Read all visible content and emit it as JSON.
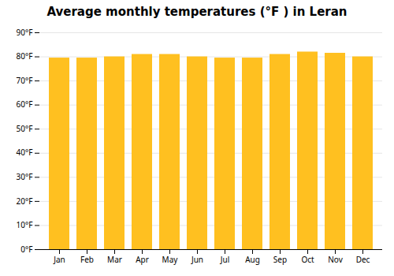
{
  "chart_data": {
    "type": "bar",
    "title": "Average monthly temperatures (°F ) in Leran",
    "categories": [
      "Jan",
      "Feb",
      "Mar",
      "Apr",
      "May",
      "Jun",
      "Jul",
      "Aug",
      "Sep",
      "Oct",
      "Nov",
      "Dec"
    ],
    "values": [
      79.5,
      79.5,
      80.0,
      81.0,
      81.0,
      80.0,
      79.5,
      79.5,
      81.0,
      82.0,
      81.5,
      80.0
    ],
    "color": "#FFC020",
    "ylim": [
      0,
      90
    ],
    "yticks": [
      {
        "value": 0,
        "label": "0°F"
      },
      {
        "value": 10,
        "label": "10°F"
      },
      {
        "value": 20,
        "label": "20°F"
      },
      {
        "value": 30,
        "label": "30°F"
      },
      {
        "value": 40,
        "label": "40°F"
      },
      {
        "value": 50,
        "label": "50°F"
      },
      {
        "value": 60,
        "label": "60°F"
      },
      {
        "value": 70,
        "label": "70°F"
      },
      {
        "value": 80,
        "label": "80°F"
      },
      {
        "value": 90,
        "label": "90°F"
      }
    ],
    "grid": true
  }
}
